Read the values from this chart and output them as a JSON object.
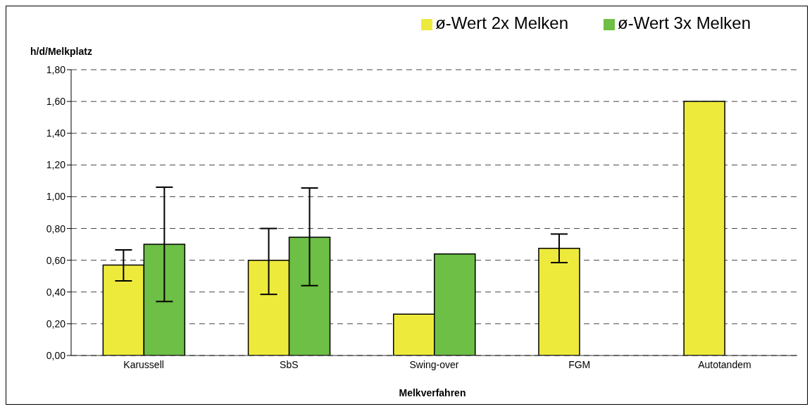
{
  "chart_data": {
    "type": "bar",
    "xlabel": "Melkverfahren",
    "ylabel": "h/d/Melkplatz",
    "categories": [
      "Karussell",
      "SbS",
      "Swing-over",
      "FGM",
      "Autotandem"
    ],
    "series": [
      {
        "name": "ø-Wert 2x Melken",
        "color": "#eeea3c",
        "values": [
          0.57,
          0.6,
          0.26,
          0.675,
          1.6
        ],
        "errors": [
          [
            0.47,
            0.665
          ],
          [
            0.385,
            0.8
          ],
          null,
          [
            0.585,
            0.765
          ],
          null
        ]
      },
      {
        "name": "ø-Wert 3x Melken",
        "color": "#6dbf45",
        "values": [
          0.7,
          0.745,
          0.64,
          0,
          0
        ],
        "errors": [
          [
            0.34,
            1.06
          ],
          [
            0.44,
            1.055
          ],
          null,
          null,
          null
        ]
      }
    ],
    "ylim": [
      0,
      1.8
    ],
    "yticks": [
      {
        "value": 0,
        "label": "0,00"
      },
      {
        "value": 0.2,
        "label": "0,20"
      },
      {
        "value": 0.4,
        "label": "0,40"
      },
      {
        "value": 0.6,
        "label": "0,60"
      },
      {
        "value": 0.8,
        "label": "0,80"
      },
      {
        "value": 1,
        "label": "1,00"
      },
      {
        "value": 1.2,
        "label": "1,20"
      },
      {
        "value": 1.4,
        "label": "1,40"
      },
      {
        "value": 1.6,
        "label": "1,60"
      },
      {
        "value": 1.8,
        "label": "1,80"
      }
    ],
    "grid": "y",
    "legend": "top right"
  }
}
